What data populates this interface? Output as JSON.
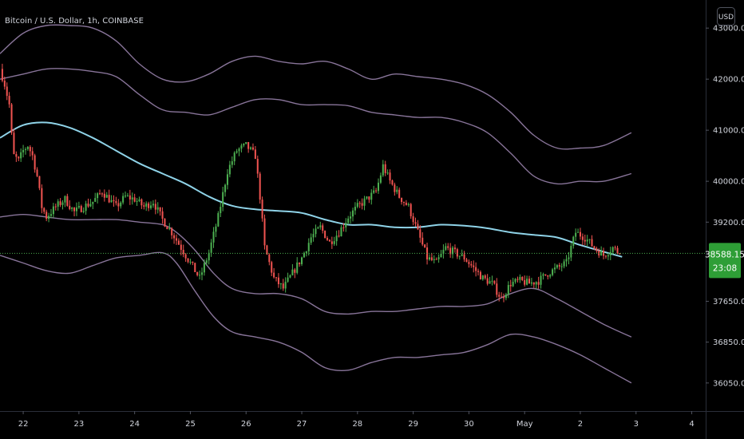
{
  "chart_data": {
    "type": "candlestick",
    "title": "Bitcoin / U.S. Dollar, 1h, COINBASE",
    "currency_button": "USD",
    "x_ticks": [
      "22",
      "23",
      "24",
      "25",
      "26",
      "27",
      "28",
      "29",
      "30",
      "May",
      "2",
      "3",
      "4"
    ],
    "x_tick_positions_hours": [
      0,
      24,
      48,
      72,
      96,
      120,
      144,
      168,
      192,
      216,
      240,
      264,
      288
    ],
    "x_range_hours": [
      -10,
      294
    ],
    "y_ticks": [
      "43000.00",
      "42000.00",
      "41000.00",
      "40000.00",
      "39200.00",
      "37650.00",
      "36850.00",
      "36050.00"
    ],
    "y_tick_values": [
      43000,
      42000,
      41000,
      40000,
      39200,
      37650,
      36850,
      36050
    ],
    "y_range": [
      35500,
      43550
    ],
    "last_price": {
      "value": 38588.15,
      "label": "38588.15",
      "countdown": "23:08"
    },
    "colors": {
      "up": "#26a69a",
      "up_candle": "#4caf50",
      "down": "#ef5350",
      "ma": "#8fd3e8",
      "band": "#a088b4",
      "price_line": "#4caf50",
      "last_price_bg": "#2e9e36"
    },
    "ohlc_anchors": [
      {
        "h": -10,
        "c": 42200
      },
      {
        "h": -8,
        "c": 41900
      },
      {
        "h": -6,
        "c": 41500
      },
      {
        "h": -5,
        "c": 40900
      },
      {
        "h": -4,
        "c": 40500
      },
      {
        "h": -2,
        "c": 40400
      },
      {
        "h": 0,
        "c": 40600
      },
      {
        "h": 2,
        "c": 40700
      },
      {
        "h": 4,
        "c": 40500
      },
      {
        "h": 6,
        "c": 40100
      },
      {
        "h": 8,
        "c": 39500
      },
      {
        "h": 10,
        "c": 39300
      },
      {
        "h": 14,
        "c": 39500
      },
      {
        "h": 18,
        "c": 39650
      },
      {
        "h": 22,
        "c": 39400
      },
      {
        "h": 26,
        "c": 39500
      },
      {
        "h": 30,
        "c": 39600
      },
      {
        "h": 34,
        "c": 39800
      },
      {
        "h": 40,
        "c": 39500
      },
      {
        "h": 44,
        "c": 39700
      },
      {
        "h": 48,
        "c": 39650
      },
      {
        "h": 52,
        "c": 39500
      },
      {
        "h": 56,
        "c": 39600
      },
      {
        "h": 60,
        "c": 39250
      },
      {
        "h": 64,
        "c": 39000
      },
      {
        "h": 68,
        "c": 38700
      },
      {
        "h": 72,
        "c": 38400
      },
      {
        "h": 76,
        "c": 38100
      },
      {
        "h": 80,
        "c": 38600
      },
      {
        "h": 84,
        "c": 39300
      },
      {
        "h": 88,
        "c": 40200
      },
      {
        "h": 92,
        "c": 40600
      },
      {
        "h": 96,
        "c": 40700
      },
      {
        "h": 100,
        "c": 40500
      },
      {
        "h": 102,
        "c": 39700
      },
      {
        "h": 104,
        "c": 38700
      },
      {
        "h": 108,
        "c": 38100
      },
      {
        "h": 112,
        "c": 37900
      },
      {
        "h": 116,
        "c": 38200
      },
      {
        "h": 120,
        "c": 38500
      },
      {
        "h": 124,
        "c": 38900
      },
      {
        "h": 128,
        "c": 39100
      },
      {
        "h": 132,
        "c": 38800
      },
      {
        "h": 136,
        "c": 39000
      },
      {
        "h": 140,
        "c": 39300
      },
      {
        "h": 144,
        "c": 39500
      },
      {
        "h": 148,
        "c": 39650
      },
      {
        "h": 152,
        "c": 39800
      },
      {
        "h": 155,
        "c": 40300
      },
      {
        "h": 158,
        "c": 40000
      },
      {
        "h": 162,
        "c": 39700
      },
      {
        "h": 166,
        "c": 39500
      },
      {
        "h": 170,
        "c": 39000
      },
      {
        "h": 174,
        "c": 38500
      },
      {
        "h": 178,
        "c": 38400
      },
      {
        "h": 182,
        "c": 38700
      },
      {
        "h": 186,
        "c": 38600
      },
      {
        "h": 190,
        "c": 38500
      },
      {
        "h": 194,
        "c": 38300
      },
      {
        "h": 198,
        "c": 38100
      },
      {
        "h": 202,
        "c": 38000
      },
      {
        "h": 206,
        "c": 37700
      },
      {
        "h": 210,
        "c": 38000
      },
      {
        "h": 214,
        "c": 38050
      },
      {
        "h": 218,
        "c": 38000
      },
      {
        "h": 222,
        "c": 38050
      },
      {
        "h": 226,
        "c": 38200
      },
      {
        "h": 230,
        "c": 38300
      },
      {
        "h": 234,
        "c": 38400
      },
      {
        "h": 238,
        "c": 39000
      },
      {
        "h": 242,
        "c": 38900
      },
      {
        "h": 246,
        "c": 38700
      },
      {
        "h": 250,
        "c": 38550
      },
      {
        "h": 254,
        "c": 38700
      },
      {
        "h": 257,
        "c": 38588
      }
    ],
    "moving_average": [
      {
        "h": -10,
        "v": 40850
      },
      {
        "h": 0,
        "v": 41100
      },
      {
        "h": 10,
        "v": 41150
      },
      {
        "h": 20,
        "v": 41050
      },
      {
        "h": 30,
        "v": 40850
      },
      {
        "h": 40,
        "v": 40600
      },
      {
        "h": 50,
        "v": 40350
      },
      {
        "h": 60,
        "v": 40150
      },
      {
        "h": 70,
        "v": 39950
      },
      {
        "h": 80,
        "v": 39700
      },
      {
        "h": 90,
        "v": 39520
      },
      {
        "h": 100,
        "v": 39450
      },
      {
        "h": 110,
        "v": 39420
      },
      {
        "h": 120,
        "v": 39380
      },
      {
        "h": 130,
        "v": 39250
      },
      {
        "h": 140,
        "v": 39150
      },
      {
        "h": 150,
        "v": 39150
      },
      {
        "h": 160,
        "v": 39100
      },
      {
        "h": 170,
        "v": 39100
      },
      {
        "h": 180,
        "v": 39150
      },
      {
        "h": 190,
        "v": 39130
      },
      {
        "h": 200,
        "v": 39080
      },
      {
        "h": 210,
        "v": 39000
      },
      {
        "h": 220,
        "v": 38950
      },
      {
        "h": 230,
        "v": 38900
      },
      {
        "h": 240,
        "v": 38750
      },
      {
        "h": 250,
        "v": 38620
      },
      {
        "h": 258,
        "v": 38520
      }
    ],
    "bands": [
      {
        "name": "upper-outer",
        "points": [
          {
            "h": -10,
            "v": 42500
          },
          {
            "h": 0,
            "v": 42900
          },
          {
            "h": 10,
            "v": 43050
          },
          {
            "h": 20,
            "v": 43050
          },
          {
            "h": 30,
            "v": 43000
          },
          {
            "h": 40,
            "v": 42750
          },
          {
            "h": 50,
            "v": 42300
          },
          {
            "h": 60,
            "v": 42000
          },
          {
            "h": 70,
            "v": 41950
          },
          {
            "h": 80,
            "v": 42100
          },
          {
            "h": 90,
            "v": 42350
          },
          {
            "h": 100,
            "v": 42450
          },
          {
            "h": 110,
            "v": 42350
          },
          {
            "h": 120,
            "v": 42300
          },
          {
            "h": 130,
            "v": 42350
          },
          {
            "h": 140,
            "v": 42200
          },
          {
            "h": 150,
            "v": 42000
          },
          {
            "h": 160,
            "v": 42100
          },
          {
            "h": 170,
            "v": 42050
          },
          {
            "h": 180,
            "v": 42000
          },
          {
            "h": 190,
            "v": 41900
          },
          {
            "h": 200,
            "v": 41700
          },
          {
            "h": 210,
            "v": 41350
          },
          {
            "h": 220,
            "v": 40900
          },
          {
            "h": 230,
            "v": 40650
          },
          {
            "h": 240,
            "v": 40650
          },
          {
            "h": 250,
            "v": 40700
          },
          {
            "h": 262,
            "v": 40950
          }
        ]
      },
      {
        "name": "upper-inner",
        "points": [
          {
            "h": -10,
            "v": 42000
          },
          {
            "h": 0,
            "v": 42100
          },
          {
            "h": 10,
            "v": 42200
          },
          {
            "h": 20,
            "v": 42200
          },
          {
            "h": 30,
            "v": 42150
          },
          {
            "h": 40,
            "v": 42050
          },
          {
            "h": 50,
            "v": 41700
          },
          {
            "h": 60,
            "v": 41400
          },
          {
            "h": 70,
            "v": 41350
          },
          {
            "h": 80,
            "v": 41300
          },
          {
            "h": 90,
            "v": 41450
          },
          {
            "h": 100,
            "v": 41600
          },
          {
            "h": 110,
            "v": 41600
          },
          {
            "h": 120,
            "v": 41500
          },
          {
            "h": 130,
            "v": 41500
          },
          {
            "h": 140,
            "v": 41480
          },
          {
            "h": 150,
            "v": 41350
          },
          {
            "h": 160,
            "v": 41300
          },
          {
            "h": 170,
            "v": 41250
          },
          {
            "h": 180,
            "v": 41250
          },
          {
            "h": 190,
            "v": 41150
          },
          {
            "h": 200,
            "v": 40950
          },
          {
            "h": 210,
            "v": 40550
          },
          {
            "h": 220,
            "v": 40100
          },
          {
            "h": 230,
            "v": 39950
          },
          {
            "h": 240,
            "v": 40000
          },
          {
            "h": 250,
            "v": 40000
          },
          {
            "h": 262,
            "v": 40150
          }
        ]
      },
      {
        "name": "lower-inner",
        "points": [
          {
            "h": -10,
            "v": 39300
          },
          {
            "h": 0,
            "v": 39350
          },
          {
            "h": 10,
            "v": 39300
          },
          {
            "h": 20,
            "v": 39250
          },
          {
            "h": 30,
            "v": 39250
          },
          {
            "h": 40,
            "v": 39250
          },
          {
            "h": 50,
            "v": 39200
          },
          {
            "h": 60,
            "v": 39150
          },
          {
            "h": 66,
            "v": 39000
          },
          {
            "h": 74,
            "v": 38650
          },
          {
            "h": 82,
            "v": 38200
          },
          {
            "h": 90,
            "v": 37900
          },
          {
            "h": 100,
            "v": 37800
          },
          {
            "h": 110,
            "v": 37800
          },
          {
            "h": 120,
            "v": 37700
          },
          {
            "h": 130,
            "v": 37450
          },
          {
            "h": 140,
            "v": 37400
          },
          {
            "h": 150,
            "v": 37450
          },
          {
            "h": 160,
            "v": 37450
          },
          {
            "h": 170,
            "v": 37500
          },
          {
            "h": 180,
            "v": 37550
          },
          {
            "h": 190,
            "v": 37550
          },
          {
            "h": 200,
            "v": 37600
          },
          {
            "h": 210,
            "v": 37800
          },
          {
            "h": 220,
            "v": 37900
          },
          {
            "h": 230,
            "v": 37700
          },
          {
            "h": 240,
            "v": 37450
          },
          {
            "h": 250,
            "v": 37200
          },
          {
            "h": 262,
            "v": 36950
          }
        ]
      },
      {
        "name": "lower-outer",
        "points": [
          {
            "h": -10,
            "v": 38550
          },
          {
            "h": 0,
            "v": 38400
          },
          {
            "h": 10,
            "v": 38250
          },
          {
            "h": 20,
            "v": 38200
          },
          {
            "h": 30,
            "v": 38350
          },
          {
            "h": 40,
            "v": 38500
          },
          {
            "h": 50,
            "v": 38550
          },
          {
            "h": 60,
            "v": 38600
          },
          {
            "h": 66,
            "v": 38400
          },
          {
            "h": 74,
            "v": 37850
          },
          {
            "h": 82,
            "v": 37350
          },
          {
            "h": 90,
            "v": 37050
          },
          {
            "h": 100,
            "v": 36950
          },
          {
            "h": 110,
            "v": 36850
          },
          {
            "h": 120,
            "v": 36650
          },
          {
            "h": 130,
            "v": 36350
          },
          {
            "h": 140,
            "v": 36300
          },
          {
            "h": 150,
            "v": 36450
          },
          {
            "h": 160,
            "v": 36550
          },
          {
            "h": 170,
            "v": 36550
          },
          {
            "h": 180,
            "v": 36600
          },
          {
            "h": 190,
            "v": 36650
          },
          {
            "h": 200,
            "v": 36800
          },
          {
            "h": 210,
            "v": 37000
          },
          {
            "h": 220,
            "v": 36950
          },
          {
            "h": 230,
            "v": 36800
          },
          {
            "h": 240,
            "v": 36600
          },
          {
            "h": 250,
            "v": 36350
          },
          {
            "h": 262,
            "v": 36050
          }
        ]
      }
    ]
  }
}
